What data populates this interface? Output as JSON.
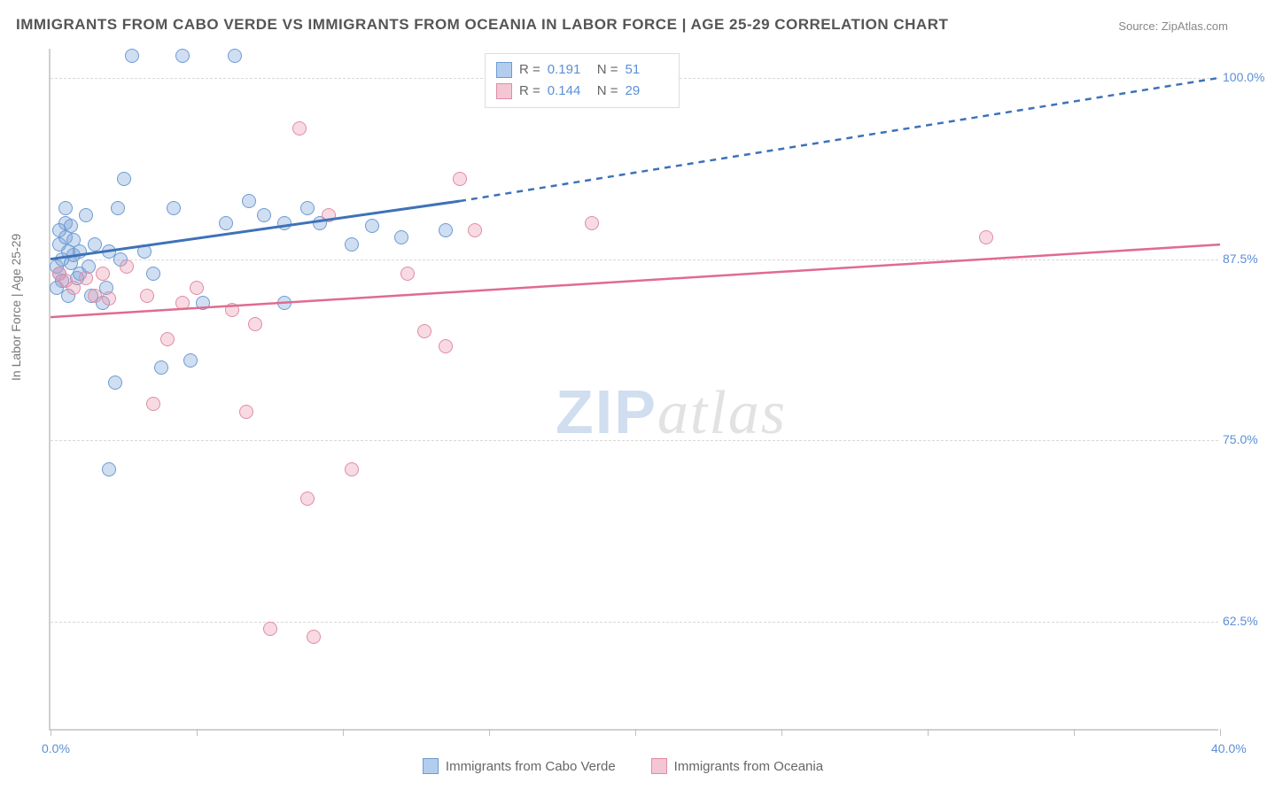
{
  "title": "IMMIGRANTS FROM CABO VERDE VS IMMIGRANTS FROM OCEANIA IN LABOR FORCE | AGE 25-29 CORRELATION CHART",
  "source_label": "Source:",
  "source_link_text": "ZipAtlas.com",
  "ylabel": "In Labor Force | Age 25-29",
  "watermark": {
    "part1": "ZIP",
    "part2": "atlas"
  },
  "chart": {
    "type": "scatter-correlation",
    "xlim": [
      0,
      40
    ],
    "ylim": [
      55,
      102
    ],
    "xticks": [
      0,
      5,
      10,
      15,
      20,
      25,
      30,
      35,
      40
    ],
    "xtick_labels": {
      "0": "0.0%",
      "40": "40.0%"
    },
    "yticks": [
      62.5,
      75.0,
      87.5,
      100.0
    ],
    "ytick_labels": [
      "62.5%",
      "75.0%",
      "87.5%",
      "100.0%"
    ],
    "grid_color": "#d8d8d8",
    "axis_color": "#d0d0d0",
    "background": "#ffffff",
    "point_radius": 8,
    "point_stroke_width": 1.5,
    "series": [
      {
        "name": "Immigrants from Cabo Verde",
        "label": "Immigrants from Cabo Verde",
        "fill": "rgba(120,160,215,0.35)",
        "stroke": "#6d9bd4",
        "swatch_fill": "#b3cdee",
        "swatch_stroke": "#6d9bd4",
        "R": "0.191",
        "N": "51",
        "trend": {
          "x1": 0,
          "y1": 87.5,
          "x2": 14,
          "y2": 91.5,
          "ext_x2": 40,
          "ext_y2": 100.0,
          "color": "#3e72b8",
          "width": 3
        },
        "points": [
          [
            0.2,
            87.0
          ],
          [
            0.3,
            86.5
          ],
          [
            0.4,
            87.5
          ],
          [
            0.3,
            88.5
          ],
          [
            0.5,
            89.0
          ],
          [
            0.6,
            88.0
          ],
          [
            0.4,
            86.0
          ],
          [
            0.7,
            87.2
          ],
          [
            0.8,
            88.8
          ],
          [
            0.9,
            86.2
          ],
          [
            0.2,
            85.5
          ],
          [
            0.5,
            90.0
          ],
          [
            0.3,
            89.5
          ],
          [
            1.0,
            88.0
          ],
          [
            1.2,
            90.5
          ],
          [
            1.4,
            85.0
          ],
          [
            1.0,
            86.5
          ],
          [
            0.8,
            87.8
          ],
          [
            1.5,
            88.5
          ],
          [
            2.0,
            88.0
          ],
          [
            1.8,
            84.5
          ],
          [
            2.3,
            91.0
          ],
          [
            2.8,
            101.5
          ],
          [
            2.5,
            93.0
          ],
          [
            2.4,
            87.5
          ],
          [
            3.2,
            88.0
          ],
          [
            3.5,
            86.5
          ],
          [
            4.2,
            91.0
          ],
          [
            4.5,
            101.5
          ],
          [
            4.8,
            80.5
          ],
          [
            2.2,
            79.0
          ],
          [
            5.2,
            84.5
          ],
          [
            3.8,
            80.0
          ],
          [
            1.9,
            85.5
          ],
          [
            2.0,
            73.0
          ],
          [
            6.3,
            101.5
          ],
          [
            6.0,
            90.0
          ],
          [
            6.8,
            91.5
          ],
          [
            7.3,
            90.5
          ],
          [
            8.0,
            90.0
          ],
          [
            8.0,
            84.5
          ],
          [
            8.8,
            91.0
          ],
          [
            9.2,
            90.0
          ],
          [
            10.3,
            88.5
          ],
          [
            11.0,
            89.8
          ],
          [
            12.0,
            89.0
          ],
          [
            13.5,
            89.5
          ],
          [
            0.5,
            91.0
          ],
          [
            0.7,
            89.8
          ],
          [
            1.3,
            87.0
          ],
          [
            0.6,
            85.0
          ]
        ]
      },
      {
        "name": "Immigrants from Oceania",
        "label": "Immigrants from Oceania",
        "fill": "rgba(235,150,175,0.35)",
        "stroke": "#e08ca5",
        "swatch_fill": "#f4c6d4",
        "swatch_stroke": "#e08ca5",
        "R": "0.144",
        "N": "29",
        "trend": {
          "x1": 0,
          "y1": 83.5,
          "x2": 40,
          "y2": 88.5,
          "ext_x2": 40,
          "ext_y2": 88.5,
          "color": "#e06b8f",
          "width": 2.5
        },
        "points": [
          [
            0.3,
            86.5
          ],
          [
            0.5,
            86.0
          ],
          [
            0.8,
            85.5
          ],
          [
            1.2,
            86.2
          ],
          [
            1.5,
            85.0
          ],
          [
            1.8,
            86.5
          ],
          [
            2.0,
            84.8
          ],
          [
            2.6,
            87.0
          ],
          [
            3.3,
            85.0
          ],
          [
            3.5,
            77.5
          ],
          [
            4.0,
            82.0
          ],
          [
            4.5,
            84.5
          ],
          [
            5.0,
            85.5
          ],
          [
            6.2,
            84.0
          ],
          [
            6.7,
            77.0
          ],
          [
            7.0,
            83.0
          ],
          [
            7.5,
            62.0
          ],
          [
            8.5,
            96.5
          ],
          [
            8.8,
            71.0
          ],
          [
            9.0,
            61.5
          ],
          [
            9.5,
            90.5
          ],
          [
            10.3,
            73.0
          ],
          [
            12.2,
            86.5
          ],
          [
            12.8,
            82.5
          ],
          [
            13.5,
            81.5
          ],
          [
            14.0,
            93.0
          ],
          [
            14.5,
            89.5
          ],
          [
            18.5,
            90.0
          ],
          [
            32.0,
            89.0
          ]
        ]
      }
    ]
  },
  "legend_top": {
    "r_label": "R  =",
    "n_label": "N  ="
  },
  "colors": {
    "title": "#555555",
    "axis_label": "#5b8fd6",
    "source": "#888888"
  }
}
